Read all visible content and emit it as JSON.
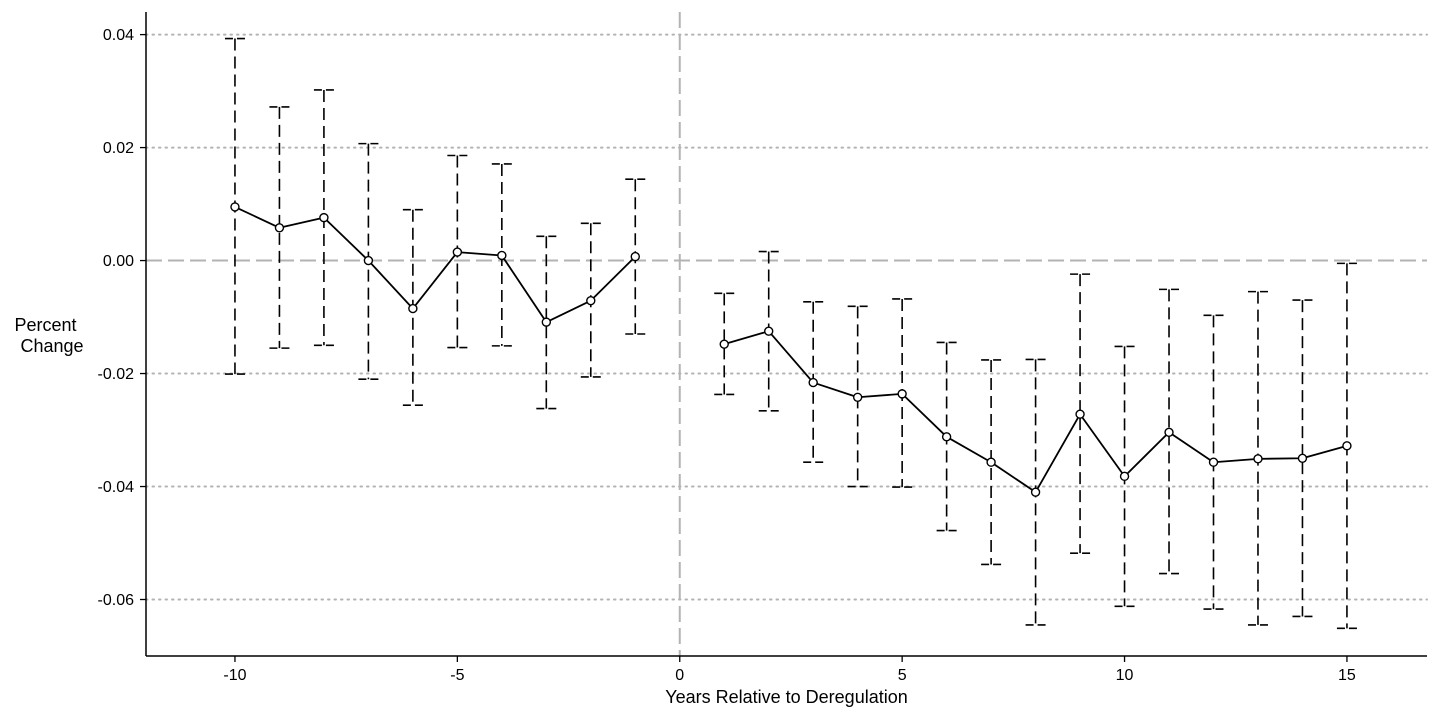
{
  "chart_data": {
    "type": "line",
    "title": "",
    "xlabel": "Years Relative to Deregulation",
    "ylabel_lines": [
      "Percent",
      "Change"
    ],
    "xlim": [
      -12,
      16.8
    ],
    "ylim": [
      -0.07,
      0.044
    ],
    "x_ticks": [
      -10,
      -5,
      0,
      5,
      10,
      15
    ],
    "x_tick_labels": [
      "-10",
      "-5",
      "0",
      "5",
      "10",
      "15"
    ],
    "y_ticks": [
      0.04,
      0.02,
      0.0,
      -0.02,
      -0.04,
      -0.06
    ],
    "y_tick_labels": [
      "0.04",
      "0.02",
      "0.00",
      "-0.02",
      "-0.04",
      "-0.06"
    ],
    "grid": "horizontal dotted",
    "reference_lines": {
      "x": 0,
      "y": 0
    },
    "colors": {
      "line": "#000000",
      "grid": "#b3b3b3",
      "reference": "#b3b3b3"
    },
    "segments": [
      {
        "x": [
          -10,
          -9,
          -8,
          -7,
          -6,
          -5,
          -4,
          -3,
          -2,
          -1
        ],
        "estimate": [
          0.0095,
          0.0058,
          0.0076,
          0.0,
          -0.0085,
          0.0015,
          0.0009,
          -0.0109,
          -0.0071,
          0.0007
        ],
        "ci_low": [
          -0.0201,
          -0.0155,
          -0.015,
          -0.021,
          -0.0256,
          -0.0154,
          -0.0151,
          -0.0262,
          -0.0206,
          -0.013
        ],
        "ci_high": [
          0.0393,
          0.0272,
          0.0302,
          0.0207,
          0.009,
          0.0186,
          0.0171,
          0.0043,
          0.0066,
          0.0144
        ]
      },
      {
        "x": [
          1,
          2,
          3,
          4,
          5,
          6,
          7,
          8,
          9,
          10,
          11,
          12,
          13,
          14,
          15
        ],
        "estimate": [
          -0.0148,
          -0.0125,
          -0.0216,
          -0.0242,
          -0.0236,
          -0.0312,
          -0.0357,
          -0.041,
          -0.0272,
          -0.0382,
          -0.0304,
          -0.0357,
          -0.0351,
          -0.035,
          -0.0328
        ],
        "ci_low": [
          -0.0237,
          -0.0266,
          -0.0357,
          -0.04,
          -0.0401,
          -0.0478,
          -0.0538,
          -0.0645,
          -0.0518,
          -0.0612,
          -0.0554,
          -0.0617,
          -0.0645,
          -0.063,
          -0.0651
        ],
        "ci_high": [
          -0.0058,
          0.0016,
          -0.0073,
          -0.0081,
          -0.0068,
          -0.0145,
          -0.0176,
          -0.0175,
          -0.0024,
          -0.0152,
          -0.0051,
          -0.0097,
          -0.0055,
          -0.007,
          -0.0005
        ]
      }
    ]
  }
}
